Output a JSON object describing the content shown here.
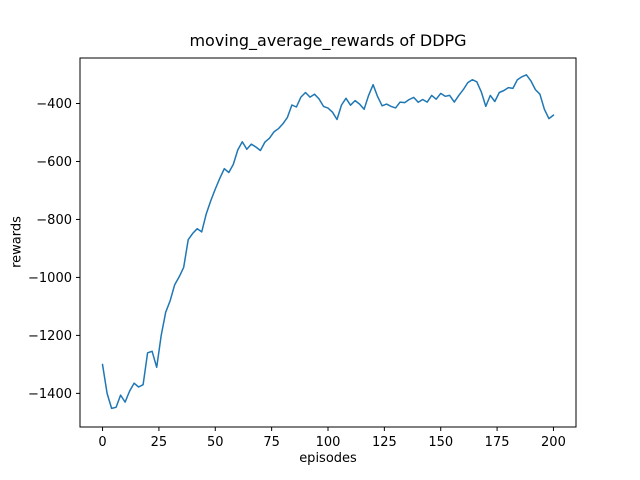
{
  "colors": {
    "line": "#1f77b4",
    "text": "#000000",
    "background": "#ffffff",
    "spine": "#000000"
  },
  "chart_data": {
    "type": "line",
    "title": "moving_average_rewards of DDPG",
    "xlabel": "episodes",
    "ylabel": "rewards",
    "xlim": [
      -10,
      210
    ],
    "ylim": [
      -1516,
      -243
    ],
    "xticks": [
      0,
      25,
      50,
      75,
      100,
      125,
      150,
      175,
      200
    ],
    "yticks": [
      -1400,
      -1200,
      -1000,
      -800,
      -600,
      -400
    ],
    "grid": false,
    "legend": null,
    "series": [
      {
        "name": "moving_average_rewards",
        "color": "#1f77b4",
        "x": [
          0,
          2,
          4,
          6,
          8,
          10,
          12,
          14,
          16,
          18,
          20,
          22,
          24,
          26,
          28,
          30,
          32,
          34,
          36,
          38,
          40,
          42,
          44,
          46,
          48,
          50,
          52,
          54,
          56,
          58,
          60,
          62,
          64,
          66,
          68,
          70,
          72,
          74,
          76,
          78,
          80,
          82,
          84,
          86,
          88,
          90,
          92,
          94,
          96,
          98,
          100,
          102,
          104,
          106,
          108,
          110,
          112,
          114,
          116,
          118,
          120,
          122,
          124,
          126,
          128,
          130,
          132,
          134,
          136,
          138,
          140,
          142,
          144,
          146,
          148,
          150,
          152,
          154,
          156,
          158,
          160,
          162,
          164,
          166,
          168,
          170,
          172,
          174,
          176,
          178,
          180,
          182,
          184,
          186,
          188,
          190,
          192,
          194,
          196,
          198,
          200
        ],
        "y": [
          -1300,
          -1400,
          -1452,
          -1448,
          -1406,
          -1430,
          -1392,
          -1365,
          -1378,
          -1370,
          -1260,
          -1255,
          -1310,
          -1200,
          -1120,
          -1080,
          -1025,
          -998,
          -965,
          -870,
          -848,
          -832,
          -843,
          -780,
          -735,
          -695,
          -658,
          -625,
          -638,
          -610,
          -560,
          -532,
          -558,
          -540,
          -550,
          -562,
          -533,
          -520,
          -498,
          -487,
          -470,
          -448,
          -405,
          -412,
          -378,
          -362,
          -378,
          -368,
          -384,
          -410,
          -416,
          -430,
          -455,
          -405,
          -382,
          -406,
          -390,
          -402,
          -420,
          -372,
          -335,
          -376,
          -408,
          -402,
          -410,
          -415,
          -395,
          -397,
          -386,
          -379,
          -396,
          -386,
          -395,
          -372,
          -385,
          -365,
          -375,
          -372,
          -395,
          -372,
          -352,
          -328,
          -318,
          -325,
          -360,
          -410,
          -372,
          -393,
          -362,
          -355,
          -345,
          -348,
          -318,
          -308,
          -301,
          -322,
          -352,
          -368,
          -420,
          -452,
          -440
        ]
      }
    ]
  }
}
